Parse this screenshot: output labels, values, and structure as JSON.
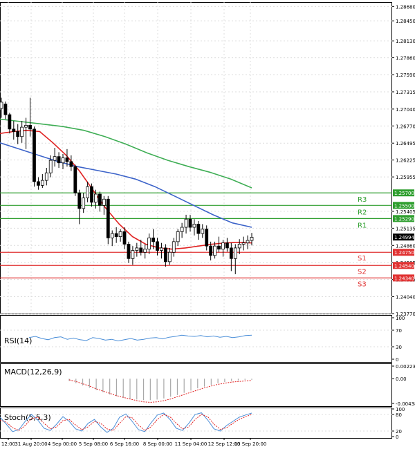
{
  "chart_data": [
    {
      "type": "candlestick",
      "title": "",
      "ylim": [
        1.2377,
        1.2875
      ],
      "price_ticks": [
        "1.28680",
        "1.28450",
        "1.28130",
        "1.27860",
        "1.27590",
        "1.27315",
        "1.27040",
        "1.26770",
        "1.26495",
        "1.26225",
        "1.25955",
        "1.25405",
        "1.25135",
        "1.24860",
        "1.24585",
        "1.24315",
        "1.24040",
        "1.23770"
      ],
      "current_price": "1.24994",
      "levels": [
        {
          "name": "R3",
          "value": 1.257,
          "label": "1.25700",
          "color": "#2e9e2e"
        },
        {
          "name": "R2",
          "value": 1.255,
          "label": "1.25500",
          "color": "#2e9e2e"
        },
        {
          "name": "R1",
          "value": 1.2529,
          "label": "1.25290",
          "color": "#2e9e2e"
        },
        {
          "name": "S1",
          "value": 1.2475,
          "label": "1.24750",
          "color": "#e03131"
        },
        {
          "name": "S2",
          "value": 1.2454,
          "label": "1.24540",
          "color": "#e03131"
        },
        {
          "name": "S3",
          "value": 1.2434,
          "label": "1.24340",
          "color": "#e03131"
        }
      ],
      "candles": [
        [
          1.2705,
          1.2722,
          1.269,
          1.2715
        ],
        [
          1.2712,
          1.2716,
          1.2688,
          1.2695
        ],
        [
          1.2695,
          1.2698,
          1.2665,
          1.2672
        ],
        [
          1.2672,
          1.2685,
          1.2655,
          1.2668
        ],
        [
          1.2668,
          1.268,
          1.2648,
          1.266
        ],
        [
          1.266,
          1.2685,
          1.265,
          1.2675
        ],
        [
          1.2675,
          1.269,
          1.264,
          1.2678
        ],
        [
          1.2678,
          1.2722,
          1.266,
          1.2672
        ],
        [
          1.2672,
          1.2676,
          1.258,
          1.2588
        ],
        [
          1.2588,
          1.2595,
          1.2575,
          1.2582
        ],
        [
          1.2582,
          1.26,
          1.2578,
          1.259
        ],
        [
          1.259,
          1.261,
          1.2582,
          1.2602
        ],
        [
          1.2602,
          1.263,
          1.2595,
          1.2622
        ],
        [
          1.2622,
          1.2642,
          1.2612,
          1.2628
        ],
        [
          1.2628,
          1.2635,
          1.261,
          1.2618
        ],
        [
          1.2618,
          1.2632,
          1.2608,
          1.2626
        ],
        [
          1.2626,
          1.264,
          1.2612,
          1.262
        ],
        [
          1.262,
          1.263,
          1.2605,
          1.2612
        ],
        [
          1.2612,
          1.2615,
          1.2565,
          1.257
        ],
        [
          1.257,
          1.2575,
          1.252,
          1.2545
        ],
        [
          1.2545,
          1.257,
          1.2538,
          1.2562
        ],
        [
          1.2562,
          1.2588,
          1.2555,
          1.258
        ],
        [
          1.258,
          1.2585,
          1.2548,
          1.2555
        ],
        [
          1.2555,
          1.2575,
          1.2545,
          1.2568
        ],
        [
          1.2568,
          1.2572,
          1.254,
          1.255
        ],
        [
          1.255,
          1.2565,
          1.2535,
          1.256
        ],
        [
          1.256,
          1.2565,
          1.2488,
          1.2498
        ],
        [
          1.2498,
          1.251,
          1.2485,
          1.2505
        ],
        [
          1.2505,
          1.2515,
          1.249,
          1.25
        ],
        [
          1.25,
          1.2512,
          1.2492,
          1.2508
        ],
        [
          1.2508,
          1.2515,
          1.248,
          1.2488
        ],
        [
          1.2488,
          1.2492,
          1.2458,
          1.2465
        ],
        [
          1.2465,
          1.2485,
          1.2455,
          1.2478
        ],
        [
          1.2478,
          1.249,
          1.2468,
          1.2482
        ],
        [
          1.2482,
          1.2495,
          1.247,
          1.2475
        ],
        [
          1.2475,
          1.2488,
          1.2465,
          1.248
        ],
        [
          1.248,
          1.2505,
          1.2472,
          1.2498
        ],
        [
          1.2498,
          1.2512,
          1.248,
          1.2492
        ],
        [
          1.2492,
          1.2498,
          1.247,
          1.2478
        ],
        [
          1.2478,
          1.249,
          1.2465,
          1.2482
        ],
        [
          1.2482,
          1.2488,
          1.2452,
          1.246
        ],
        [
          1.246,
          1.2482,
          1.2455,
          1.2475
        ],
        [
          1.2475,
          1.2498,
          1.2468,
          1.2492
        ],
        [
          1.2492,
          1.2512,
          1.2485,
          1.2508
        ],
        [
          1.2508,
          1.2522,
          1.2498,
          1.2515
        ],
        [
          1.2515,
          1.2535,
          1.2505,
          1.2528
        ],
        [
          1.2528,
          1.2535,
          1.2508,
          1.2515
        ],
        [
          1.2515,
          1.2528,
          1.2502,
          1.252
        ],
        [
          1.252,
          1.2525,
          1.2495,
          1.2505
        ],
        [
          1.2505,
          1.252,
          1.2498,
          1.2512
        ],
        [
          1.2512,
          1.2518,
          1.2478,
          1.2485
        ],
        [
          1.2485,
          1.2492,
          1.2462,
          1.247
        ],
        [
          1.247,
          1.2492,
          1.2465,
          1.2485
        ],
        [
          1.2485,
          1.25,
          1.2475,
          1.248
        ],
        [
          1.248,
          1.2495,
          1.2468,
          1.249
        ],
        [
          1.249,
          1.2498,
          1.2476,
          1.2482
        ],
        [
          1.2482,
          1.249,
          1.2445,
          1.2465
        ],
        [
          1.2465,
          1.2488,
          1.244,
          1.2482
        ],
        [
          1.2482,
          1.2496,
          1.2472,
          1.2488
        ],
        [
          1.2488,
          1.25,
          1.2478,
          1.249
        ],
        [
          1.249,
          1.2502,
          1.248,
          1.2494
        ],
        [
          1.2494,
          1.2506,
          1.2486,
          1.2499
        ]
      ],
      "ma_fast_color": "#e02020",
      "ma_mid_color": "#3c63c9",
      "ma_slow_color": "#3fae55",
      "ma_fast": [
        1.2665,
        1.2668,
        1.267,
        1.2668,
        1.265,
        1.263,
        1.2605,
        1.2575,
        1.2545,
        1.252,
        1.25,
        1.2488,
        1.2482,
        1.248,
        1.2482,
        1.2485,
        1.2488,
        1.249,
        1.2491,
        1.249
      ],
      "ma_mid": [
        1.265,
        1.264,
        1.263,
        1.262,
        1.2612,
        1.2606,
        1.26,
        1.2592,
        1.258,
        1.2565,
        1.255,
        1.2535,
        1.2522,
        1.2515
      ],
      "ma_slow": [
        1.2688,
        1.2684,
        1.268,
        1.2676,
        1.267,
        1.266,
        1.2648,
        1.2634,
        1.2622,
        1.2612,
        1.2603,
        1.2592,
        1.2578
      ]
    },
    {
      "type": "line",
      "name": "RSI(14)",
      "ylim": [
        0,
        100
      ],
      "ticks": [
        "100",
        "70",
        "30",
        "0"
      ],
      "color": "#4a8ed8",
      "values": [
        52,
        55,
        50,
        47,
        52,
        54,
        48,
        51,
        47,
        45,
        52,
        50,
        46,
        48,
        44,
        47,
        50,
        46,
        48,
        51,
        52,
        49,
        53,
        55,
        58,
        56,
        55,
        57,
        54,
        56,
        53,
        55,
        52,
        54,
        57,
        58
      ]
    },
    {
      "type": "histogram",
      "name": "MACD(12,26,9)",
      "ylim": [
        -0.004385,
        0.002237
      ],
      "ticks": [
        "0.002237",
        "0.00",
        "-0.004385"
      ],
      "bar_color": "#a8a8a8",
      "signal_color": "#e02020",
      "bars": [
        -0.0004,
        -0.0008,
        -0.0012,
        -0.0016,
        -0.002,
        -0.0024,
        -0.0028,
        -0.0031,
        -0.0034,
        -0.0036,
        -0.0037,
        -0.0038,
        -0.0038,
        -0.0037,
        -0.0035,
        -0.0032,
        -0.0029,
        -0.0025,
        -0.0021,
        -0.0017,
        -0.0014,
        -0.0011,
        -0.0008,
        -0.0006,
        -0.0004,
        -0.0003,
        -0.0002,
        -0.0002
      ],
      "signal": [
        -0.0002,
        -0.0005,
        -0.0009,
        -0.0013,
        -0.0018,
        -0.0022,
        -0.0026,
        -0.003,
        -0.0033,
        -0.0036,
        -0.0039,
        -0.0041,
        -0.0042,
        -0.0041,
        -0.0039,
        -0.0036,
        -0.0032,
        -0.0028,
        -0.0024,
        -0.002,
        -0.0016,
        -0.0013,
        -0.001,
        -0.0008,
        -0.0006,
        -0.0005,
        -0.0004,
        -0.0003
      ]
    },
    {
      "type": "line",
      "name": "Stoch(5,5,3)",
      "ylim": [
        0,
        100
      ],
      "ticks": [
        "100",
        "80",
        "20",
        "0"
      ],
      "main_color": "#4a8ed8",
      "signal_color": "#e02020",
      "main": [
        70,
        45,
        18,
        25,
        55,
        80,
        60,
        30,
        22,
        45,
        72,
        55,
        28,
        20,
        48,
        62,
        35,
        15,
        30,
        70,
        82,
        55,
        25,
        18,
        50,
        78,
        85,
        62,
        30,
        22,
        48,
        80,
        86,
        60,
        28,
        20,
        40,
        55,
        70,
        78,
        85
      ],
      "signal": [
        60,
        52,
        32,
        22,
        40,
        65,
        70,
        48,
        28,
        35,
        58,
        62,
        42,
        25,
        35,
        55,
        48,
        28,
        22,
        48,
        72,
        68,
        42,
        22,
        35,
        62,
        80,
        72,
        48,
        28,
        35,
        62,
        80,
        72,
        45,
        26,
        32,
        48,
        62,
        72,
        80
      ]
    }
  ],
  "x_labels": [
    "12:00",
    "31 Aug 20:00",
    "4 Sep 00:00",
    "5 Sep 08:00",
    "6 Sep 16:00",
    "8 Sep 00:00",
    "11 Sep 04:00",
    "12 Sep 12:00",
    "13 Sep 20:00"
  ]
}
